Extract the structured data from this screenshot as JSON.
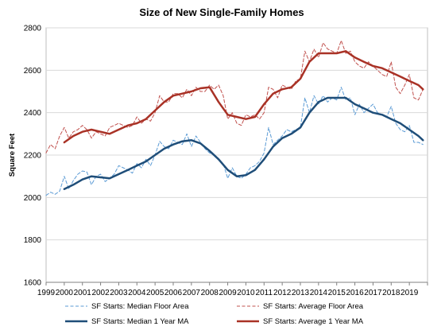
{
  "chart_data": {
    "type": "line",
    "title": "Size of New Single-Family Homes",
    "xlabel": "",
    "ylabel": "Square Feet",
    "ylim": [
      1600,
      2800
    ],
    "yticks": [
      1600,
      1800,
      2000,
      2200,
      2400,
      2600,
      2800
    ],
    "xlim": [
      1999,
      2020
    ],
    "xtick_labels": [
      "1999",
      "2000",
      "2001",
      "2002",
      "2003",
      "2004",
      "2005",
      "2006",
      "2007",
      "2008",
      "2009",
      "2010",
      "2011",
      "2012",
      "2013",
      "2014",
      "2015",
      "2016",
      "2017",
      "2018",
      "2019"
    ],
    "grid": "horizontal",
    "legend_position": "bottom",
    "series": [
      {
        "name": "SF Starts: Median Floor Area",
        "color": "#5b9bd5",
        "style": "dashed",
        "width": 1,
        "x": [
          1999,
          1999.25,
          1999.5,
          1999.75,
          2000,
          2000.25,
          2000.5,
          2000.75,
          2001,
          2001.25,
          2001.5,
          2001.75,
          2002,
          2002.25,
          2002.5,
          2002.75,
          2003,
          2003.25,
          2003.5,
          2003.75,
          2004,
          2004.25,
          2004.5,
          2004.75,
          2005,
          2005.25,
          2005.5,
          2005.75,
          2006,
          2006.25,
          2006.5,
          2006.75,
          2007,
          2007.25,
          2007.5,
          2007.75,
          2008,
          2008.25,
          2008.5,
          2008.75,
          2009,
          2009.25,
          2009.5,
          2009.75,
          2010,
          2010.25,
          2010.5,
          2010.75,
          2011,
          2011.25,
          2011.5,
          2011.75,
          2012,
          2012.25,
          2012.5,
          2012.75,
          2013,
          2013.25,
          2013.5,
          2013.75,
          2014,
          2014.25,
          2014.5,
          2014.75,
          2015,
          2015.25,
          2015.5,
          2015.75,
          2016,
          2016.25,
          2016.5,
          2016.75,
          2017,
          2017.25,
          2017.5,
          2017.75,
          2018,
          2018.25,
          2018.5,
          2018.75,
          2019,
          2019.25,
          2019.5,
          2019.75
        ],
        "y": [
          2010,
          2025,
          2015,
          2030,
          2100,
          2040,
          2080,
          2110,
          2125,
          2120,
          2060,
          2100,
          2110,
          2075,
          2090,
          2110,
          2150,
          2140,
          2130,
          2115,
          2160,
          2140,
          2180,
          2150,
          2200,
          2265,
          2240,
          2230,
          2270,
          2260,
          2250,
          2300,
          2240,
          2290,
          2260,
          2230,
          2210,
          2200,
          2180,
          2160,
          2090,
          2140,
          2100,
          2090,
          2110,
          2140,
          2150,
          2170,
          2210,
          2330,
          2250,
          2270,
          2290,
          2320,
          2310,
          2320,
          2330,
          2470,
          2400,
          2480,
          2440,
          2480,
          2450,
          2470,
          2460,
          2520,
          2460,
          2470,
          2390,
          2440,
          2400,
          2420,
          2440,
          2400,
          2390,
          2380,
          2430,
          2350,
          2320,
          2310,
          2340,
          2260,
          2260,
          2250
        ]
      },
      {
        "name": "SF Starts: Average Floor Area",
        "color": "#c0504d",
        "style": "dashed",
        "width": 1,
        "x": [
          1999,
          1999.25,
          1999.5,
          1999.75,
          2000,
          2000.25,
          2000.5,
          2000.75,
          2001,
          2001.25,
          2001.5,
          2001.75,
          2002,
          2002.25,
          2002.5,
          2002.75,
          2003,
          2003.25,
          2003.5,
          2003.75,
          2004,
          2004.25,
          2004.5,
          2004.75,
          2005,
          2005.25,
          2005.5,
          2005.75,
          2006,
          2006.25,
          2006.5,
          2006.75,
          2007,
          2007.25,
          2007.5,
          2007.75,
          2008,
          2008.25,
          2008.5,
          2008.75,
          2009,
          2009.25,
          2009.5,
          2009.75,
          2010,
          2010.25,
          2010.5,
          2010.75,
          2011,
          2011.25,
          2011.5,
          2011.75,
          2012,
          2012.25,
          2012.5,
          2012.75,
          2013,
          2013.25,
          2013.5,
          2013.75,
          2014,
          2014.25,
          2014.5,
          2014.75,
          2015,
          2015.25,
          2015.5,
          2015.75,
          2016,
          2016.25,
          2016.5,
          2016.75,
          2017,
          2017.25,
          2017.5,
          2017.75,
          2018,
          2018.25,
          2018.5,
          2018.75,
          2019,
          2019.25,
          2019.5,
          2019.75
        ],
        "y": [
          2210,
          2250,
          2230,
          2290,
          2330,
          2280,
          2310,
          2320,
          2340,
          2320,
          2280,
          2310,
          2300,
          2290,
          2330,
          2340,
          2350,
          2340,
          2330,
          2340,
          2380,
          2350,
          2370,
          2360,
          2400,
          2480,
          2450,
          2450,
          2490,
          2490,
          2470,
          2510,
          2480,
          2520,
          2500,
          2500,
          2530,
          2510,
          2530,
          2480,
          2370,
          2400,
          2350,
          2340,
          2390,
          2380,
          2390,
          2370,
          2400,
          2520,
          2510,
          2470,
          2530,
          2520,
          2510,
          2550,
          2560,
          2690,
          2640,
          2700,
          2660,
          2730,
          2700,
          2690,
          2680,
          2740,
          2680,
          2690,
          2640,
          2620,
          2610,
          2640,
          2620,
          2600,
          2580,
          2570,
          2640,
          2520,
          2490,
          2530,
          2580,
          2470,
          2460,
          2510
        ]
      },
      {
        "name": "SF Starts: Median 1 Year MA",
        "color": "#1f4e79",
        "style": "solid",
        "width": 2.5,
        "x": [
          2000,
          2000.5,
          2001,
          2001.5,
          2002,
          2002.5,
          2003,
          2003.5,
          2004,
          2004.5,
          2005,
          2005.5,
          2006,
          2006.5,
          2007,
          2007.5,
          2008,
          2008.5,
          2009,
          2009.5,
          2010,
          2010.5,
          2011,
          2011.5,
          2012,
          2012.5,
          2013,
          2013.5,
          2014,
          2014.5,
          2015,
          2015.5,
          2016,
          2016.5,
          2017,
          2017.5,
          2018,
          2018.5,
          2019,
          2019.5,
          2019.75
        ],
        "y": [
          2040,
          2060,
          2085,
          2100,
          2095,
          2090,
          2110,
          2130,
          2150,
          2170,
          2200,
          2230,
          2250,
          2265,
          2270,
          2255,
          2220,
          2180,
          2130,
          2100,
          2105,
          2130,
          2180,
          2240,
          2280,
          2300,
          2330,
          2400,
          2450,
          2470,
          2470,
          2470,
          2440,
          2420,
          2400,
          2390,
          2370,
          2350,
          2320,
          2290,
          2270
        ]
      },
      {
        "name": "SF Starts: Average 1 Year MA",
        "color": "#a93226",
        "style": "solid",
        "width": 2.5,
        "x": [
          2000,
          2000.5,
          2001,
          2001.5,
          2002,
          2002.5,
          2003,
          2003.5,
          2004,
          2004.5,
          2005,
          2005.5,
          2006,
          2006.5,
          2007,
          2007.5,
          2008,
          2008.5,
          2009,
          2009.5,
          2010,
          2010.5,
          2011,
          2011.5,
          2012,
          2012.5,
          2013,
          2013.5,
          2014,
          2014.5,
          2015,
          2015.5,
          2016,
          2016.5,
          2017,
          2017.5,
          2018,
          2018.5,
          2019,
          2019.5,
          2019.75
        ],
        "y": [
          2260,
          2290,
          2310,
          2320,
          2310,
          2300,
          2320,
          2340,
          2350,
          2370,
          2410,
          2450,
          2480,
          2490,
          2500,
          2515,
          2520,
          2450,
          2390,
          2380,
          2370,
          2380,
          2440,
          2490,
          2510,
          2520,
          2560,
          2640,
          2680,
          2680,
          2680,
          2690,
          2660,
          2640,
          2620,
          2610,
          2590,
          2570,
          2550,
          2530,
          2510
        ]
      }
    ]
  }
}
